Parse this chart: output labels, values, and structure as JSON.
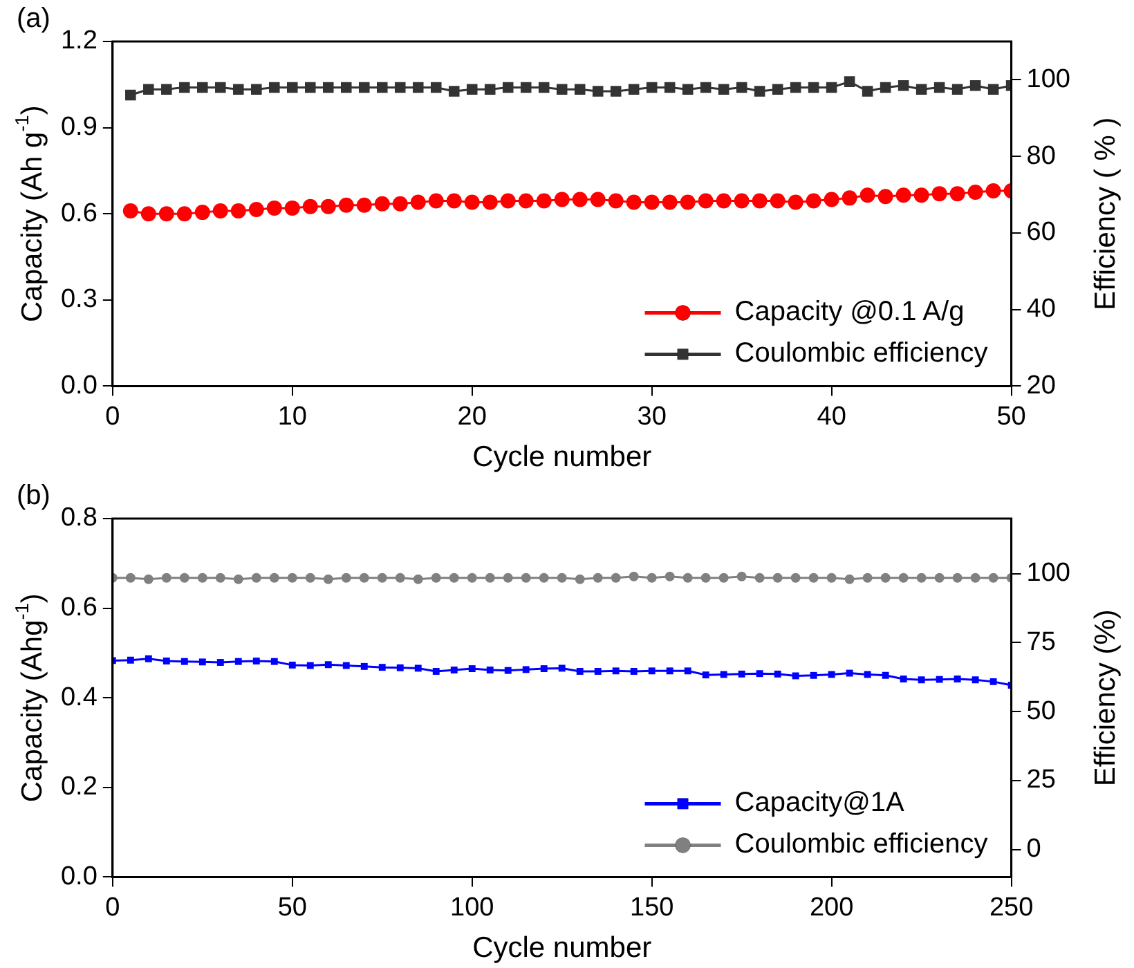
{
  "chart_data": [
    {
      "type": "line",
      "annotations": [
        "(a)"
      ],
      "xlabel": "Cycle number",
      "ylabel": "Capacity (Ah g$^{-1}$)",
      "y2label": "Efficiency ( % )",
      "x": [
        1,
        2,
        3,
        4,
        5,
        6,
        7,
        8,
        9,
        10,
        11,
        12,
        13,
        14,
        15,
        16,
        17,
        18,
        19,
        20,
        21,
        22,
        23,
        24,
        25,
        26,
        27,
        28,
        29,
        30,
        31,
        32,
        33,
        34,
        35,
        36,
        37,
        38,
        39,
        40,
        41,
        42,
        43,
        44,
        45,
        46,
        47,
        48,
        49,
        50
      ],
      "xlim": [
        0,
        50
      ],
      "xticks": [
        0,
        10,
        20,
        30,
        40,
        50
      ],
      "ylim": [
        0,
        1.2
      ],
      "yticks": [
        {
          "value": 0,
          "label": "0.0"
        },
        0.3,
        0.6,
        0.9,
        1.2
      ],
      "y2lim": [
        20,
        110
      ],
      "y2ticks": [
        20,
        40,
        60,
        80,
        100
      ],
      "grid": false,
      "legend": "bottom right",
      "line_style": "solid",
      "series": [
        {
          "name": "Capacity @0.1 A/g",
          "color": "#ff0000",
          "marker": "circle",
          "values": [
            0.61,
            0.6,
            0.6,
            0.6,
            0.605,
            0.61,
            0.61,
            0.615,
            0.62,
            0.62,
            0.625,
            0.625,
            0.63,
            0.63,
            0.635,
            0.635,
            0.64,
            0.645,
            0.645,
            0.64,
            0.64,
            0.645,
            0.645,
            0.645,
            0.65,
            0.65,
            0.65,
            0.645,
            0.64,
            0.64,
            0.64,
            0.64,
            0.645,
            0.645,
            0.645,
            0.645,
            0.645,
            0.64,
            0.645,
            0.65,
            0.655,
            0.665,
            0.66,
            0.665,
            0.665,
            0.67,
            0.67,
            0.675,
            0.68,
            0.68
          ]
        },
        {
          "name": "Coulombic efficiency",
          "color": "#333333",
          "marker": "square",
          "axis": "y2",
          "values": [
            96,
            97.5,
            97.5,
            98,
            98,
            98,
            97.5,
            97.5,
            98,
            98,
            98,
            98,
            98,
            98,
            98,
            98,
            98,
            98,
            97,
            97.5,
            97.5,
            98,
            98,
            98,
            97.5,
            97.5,
            97,
            97,
            97.5,
            98,
            98,
            97.5,
            98,
            97.5,
            98,
            97,
            97.5,
            98,
            98,
            98,
            99.5,
            97,
            98,
            98.5,
            97.5,
            98,
            97.5,
            98.5,
            97.5,
            98.5
          ]
        }
      ]
    },
    {
      "type": "line",
      "annotations": [
        "(b)"
      ],
      "xlabel": "Cycle number",
      "ylabel": "Capacity (Ahg$^{-1}$)",
      "y2label": "Efficiency (%)",
      "x": [
        0,
        5,
        10,
        15,
        20,
        25,
        30,
        35,
        40,
        45,
        50,
        55,
        60,
        65,
        70,
        75,
        80,
        85,
        90,
        95,
        100,
        105,
        110,
        115,
        120,
        125,
        130,
        135,
        140,
        145,
        150,
        155,
        160,
        165,
        170,
        175,
        180,
        185,
        190,
        195,
        200,
        205,
        210,
        215,
        220,
        225,
        230,
        235,
        240,
        245,
        250
      ],
      "xlim": [
        0,
        250
      ],
      "xticks": [
        0,
        50,
        100,
        150,
        200,
        250
      ],
      "ylim": [
        0,
        0.8
      ],
      "yticks": [
        {
          "value": 0,
          "label": "0.0"
        },
        0.2,
        0.4,
        0.6,
        0.8
      ],
      "y2lim": [
        -10,
        120
      ],
      "y2ticks": [
        0,
        25,
        50,
        75,
        100
      ],
      "grid": false,
      "legend": "bottom right",
      "line_style": "solid",
      "series": [
        {
          "name": "Capacity@1A",
          "color": "#0000ff",
          "marker": "square",
          "values": [
            0.483,
            0.484,
            0.487,
            0.482,
            0.481,
            0.48,
            0.479,
            0.481,
            0.482,
            0.481,
            0.473,
            0.472,
            0.474,
            0.472,
            0.47,
            0.468,
            0.467,
            0.466,
            0.459,
            0.462,
            0.465,
            0.462,
            0.461,
            0.463,
            0.465,
            0.466,
            0.459,
            0.459,
            0.46,
            0.459,
            0.46,
            0.46,
            0.46,
            0.451,
            0.452,
            0.453,
            0.454,
            0.453,
            0.449,
            0.45,
            0.452,
            0.455,
            0.452,
            0.45,
            0.442,
            0.44,
            0.441,
            0.442,
            0.44,
            0.436,
            0.428
          ]
        },
        {
          "name": "Coulombic efficiency",
          "color": "#808080",
          "marker": "circle",
          "axis": "y2",
          "values": [
            98.5,
            98.5,
            98,
            98.5,
            98.5,
            98.5,
            98.5,
            98,
            98.5,
            98.5,
            98.5,
            98.5,
            98,
            98.5,
            98.5,
            98.5,
            98.5,
            98,
            98.5,
            98.5,
            98.5,
            98.5,
            98.5,
            98.5,
            98.5,
            98.5,
            98,
            98.5,
            98.5,
            99,
            98.5,
            99,
            98.5,
            98.5,
            98.5,
            99,
            98.5,
            98.5,
            98.5,
            98.5,
            98.5,
            98,
            98.5,
            98.5,
            98.5,
            98.5,
            98.5,
            98.5,
            98.5,
            98.5,
            98.5
          ]
        }
      ]
    }
  ]
}
